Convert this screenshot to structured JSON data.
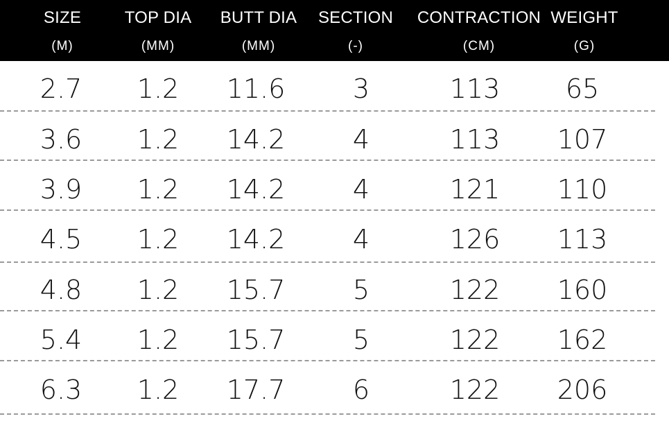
{
  "columns": [
    {
      "name": "SIZE",
      "unit": "(M)"
    },
    {
      "name": "TOP DIA",
      "unit": "(MM)"
    },
    {
      "name": "BUTT DIA",
      "unit": "(MM)"
    },
    {
      "name": "SECTION",
      "unit": "(-)"
    },
    {
      "name": "CONTRACTION",
      "unit": "(CM)"
    },
    {
      "name": "WEIGHT",
      "unit": "(G)"
    }
  ],
  "rows": [
    [
      "2.7",
      "1.2",
      "11.6",
      "3",
      "113",
      "65"
    ],
    [
      "3.6",
      "1.2",
      "14.2",
      "4",
      "113",
      "107"
    ],
    [
      "3.9",
      "1.2",
      "14.2",
      "4",
      "121",
      "110"
    ],
    [
      "4.5",
      "1.2",
      "14.2",
      "4",
      "126",
      "113"
    ],
    [
      "4.8",
      "1.2",
      "15.7",
      "5",
      "122",
      "160"
    ],
    [
      "5.4",
      "1.2",
      "15.7",
      "5",
      "122",
      "162"
    ],
    [
      "6.3",
      "1.2",
      "17.7",
      "6",
      "122",
      "206"
    ]
  ],
  "chart_data": {
    "type": "table",
    "columns": [
      "SIZE (M)",
      "TOP DIA (MM)",
      "BUTT DIA (MM)",
      "SECTION (-)",
      "CONTRACTION (CM)",
      "WEIGHT (G)"
    ],
    "rows": [
      [
        2.7,
        1.2,
        11.6,
        3,
        113,
        65
      ],
      [
        3.6,
        1.2,
        14.2,
        4,
        113,
        107
      ],
      [
        3.9,
        1.2,
        14.2,
        4,
        121,
        110
      ],
      [
        4.5,
        1.2,
        14.2,
        4,
        126,
        113
      ],
      [
        4.8,
        1.2,
        15.7,
        5,
        122,
        160
      ],
      [
        5.4,
        1.2,
        15.7,
        5,
        122,
        162
      ],
      [
        6.3,
        1.2,
        17.7,
        6,
        122,
        206
      ]
    ]
  }
}
